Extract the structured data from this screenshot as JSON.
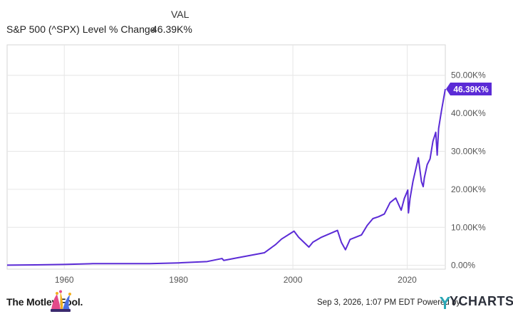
{
  "legend": {
    "column_header": "VAL",
    "series_name": "S&P 500 (^SPX) Level % Change",
    "series_value": "46.39K%"
  },
  "chart_data": {
    "type": "line",
    "title": "",
    "xlabel": "",
    "ylabel": "",
    "xlim": [
      1950,
      2026.67
    ],
    "ylim": [
      -1000,
      58000
    ],
    "x_ticks": [
      1960,
      1980,
      2000,
      2020
    ],
    "x_tick_labels": [
      "1960",
      "1980",
      "2000",
      "2020"
    ],
    "y_ticks": [
      0,
      10000,
      20000,
      30000,
      40000,
      50000
    ],
    "y_tick_labels": [
      "0.00%",
      "10.00K%",
      "20.00K%",
      "30.00K%",
      "40.00K%",
      "50.00K%"
    ],
    "grid": true,
    "series": [
      {
        "name": "S&P 500 (^SPX) Level % Change",
        "color": "#5b2bd6",
        "end_label": "46.39K%",
        "x": [
          1950,
          1955,
          1960,
          1965,
          1970,
          1975,
          1980,
          1985,
          1987.6,
          1987.9,
          1990,
          1995,
          1997,
          1998,
          2000.2,
          2001,
          2002.8,
          2003.5,
          2005,
          2007.8,
          2008.5,
          2009.2,
          2010,
          2012,
          2013,
          2014,
          2015,
          2016,
          2017,
          2018,
          2018.95,
          2019.5,
          2020.1,
          2020.22,
          2020.5,
          2021,
          2021.95,
          2022.5,
          2022.8,
          2023,
          2023.5,
          2024,
          2024.5,
          2025,
          2025.25,
          2025.5,
          2026,
          2026.67
        ],
        "y": [
          50,
          120,
          250,
          450,
          450,
          450,
          650,
          1000,
          1800,
          1300,
          1900,
          3300,
          5500,
          6900,
          9000,
          7400,
          4800,
          6100,
          7400,
          9200,
          6000,
          4100,
          6800,
          8000,
          10500,
          12300,
          12800,
          13500,
          16500,
          17700,
          14500,
          17600,
          19800,
          13800,
          17600,
          22000,
          28300,
          22000,
          20700,
          23000,
          26500,
          28000,
          32600,
          35000,
          29000,
          36000,
          40700,
          46390
        ]
      }
    ]
  },
  "footer": {
    "brand": "The Motley Fool.",
    "timestamp": "Sep 3, 2026, 1:07 PM EDT",
    "powered_by": "Powered by",
    "provider": "YCHARTS",
    "jester_colors": [
      "#e34a8a",
      "#f2b01f",
      "#4a6ee0"
    ]
  }
}
